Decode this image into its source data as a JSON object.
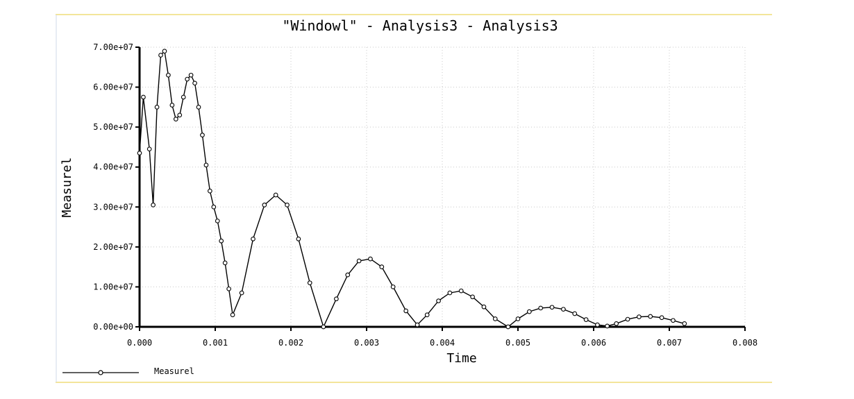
{
  "window": {
    "border_color": "#f3e59a",
    "side_border_color": "#cfd8e8"
  },
  "chart_data": {
    "type": "line",
    "title": "\"Windowl\" - Analysis3 - Analysis3",
    "xlabel": "Time",
    "ylabel": "Measurel",
    "xlim": [
      0,
      0.008
    ],
    "ylim": [
      0,
      70000000
    ],
    "grid": true,
    "legend_position": "bottom-left",
    "x_tick_labels": [
      "0.000",
      "0.001",
      "0.002",
      "0.003",
      "0.004",
      "0.005",
      "0.006",
      "0.007",
      "0.008"
    ],
    "y_tick_labels": [
      "0.00e+00",
      "1.00e+07",
      "2.00e+07",
      "3.00e+07",
      "4.00e+07",
      "5.00e+07",
      "6.00e+07",
      "7.00e+07"
    ],
    "series": [
      {
        "name": "Measurel",
        "color": "#000000",
        "marker": "circle",
        "x": [
          0.0,
          5e-05,
          0.00013,
          0.00018,
          0.00023,
          0.00028,
          0.00033,
          0.00038,
          0.00043,
          0.00048,
          0.00053,
          0.00058,
          0.00063,
          0.00068,
          0.00073,
          0.00078,
          0.00083,
          0.00088,
          0.00093,
          0.00098,
          0.00103,
          0.00108,
          0.00113,
          0.00118,
          0.00123,
          0.00135,
          0.0015,
          0.00165,
          0.0018,
          0.00195,
          0.0021,
          0.00225,
          0.00243,
          0.0026,
          0.00275,
          0.0029,
          0.00305,
          0.0032,
          0.00335,
          0.00352,
          0.00367,
          0.0038,
          0.00395,
          0.0041,
          0.00425,
          0.0044,
          0.00455,
          0.0047,
          0.00487,
          0.005,
          0.00515,
          0.0053,
          0.00545,
          0.0056,
          0.00575,
          0.0059,
          0.00605,
          0.00618,
          0.0063,
          0.00645,
          0.0066,
          0.00675,
          0.0069,
          0.00705,
          0.0072
        ],
        "y": [
          43500000,
          57500000,
          44500000,
          30500000,
          55000000,
          68000000,
          69000000,
          63000000,
          55500000,
          52000000,
          53000000,
          57500000,
          62000000,
          63000000,
          61000000,
          55000000,
          48000000,
          40500000,
          34000000,
          30000000,
          26500000,
          21500000,
          16000000,
          9500000,
          3000000,
          8500000,
          22000000,
          30500000,
          33000000,
          30500000,
          22000000,
          11000000,
          0,
          7000000,
          13000000,
          16500000,
          17000000,
          15000000,
          10000000,
          4000000,
          500000,
          3000000,
          6500000,
          8500000,
          9000000,
          7500000,
          5000000,
          2000000,
          0,
          2000000,
          3800000,
          4700000,
          4900000,
          4400000,
          3300000,
          1800000,
          500000,
          200000,
          800000,
          1900000,
          2500000,
          2600000,
          2300000,
          1600000,
          800000
        ]
      }
    ]
  }
}
